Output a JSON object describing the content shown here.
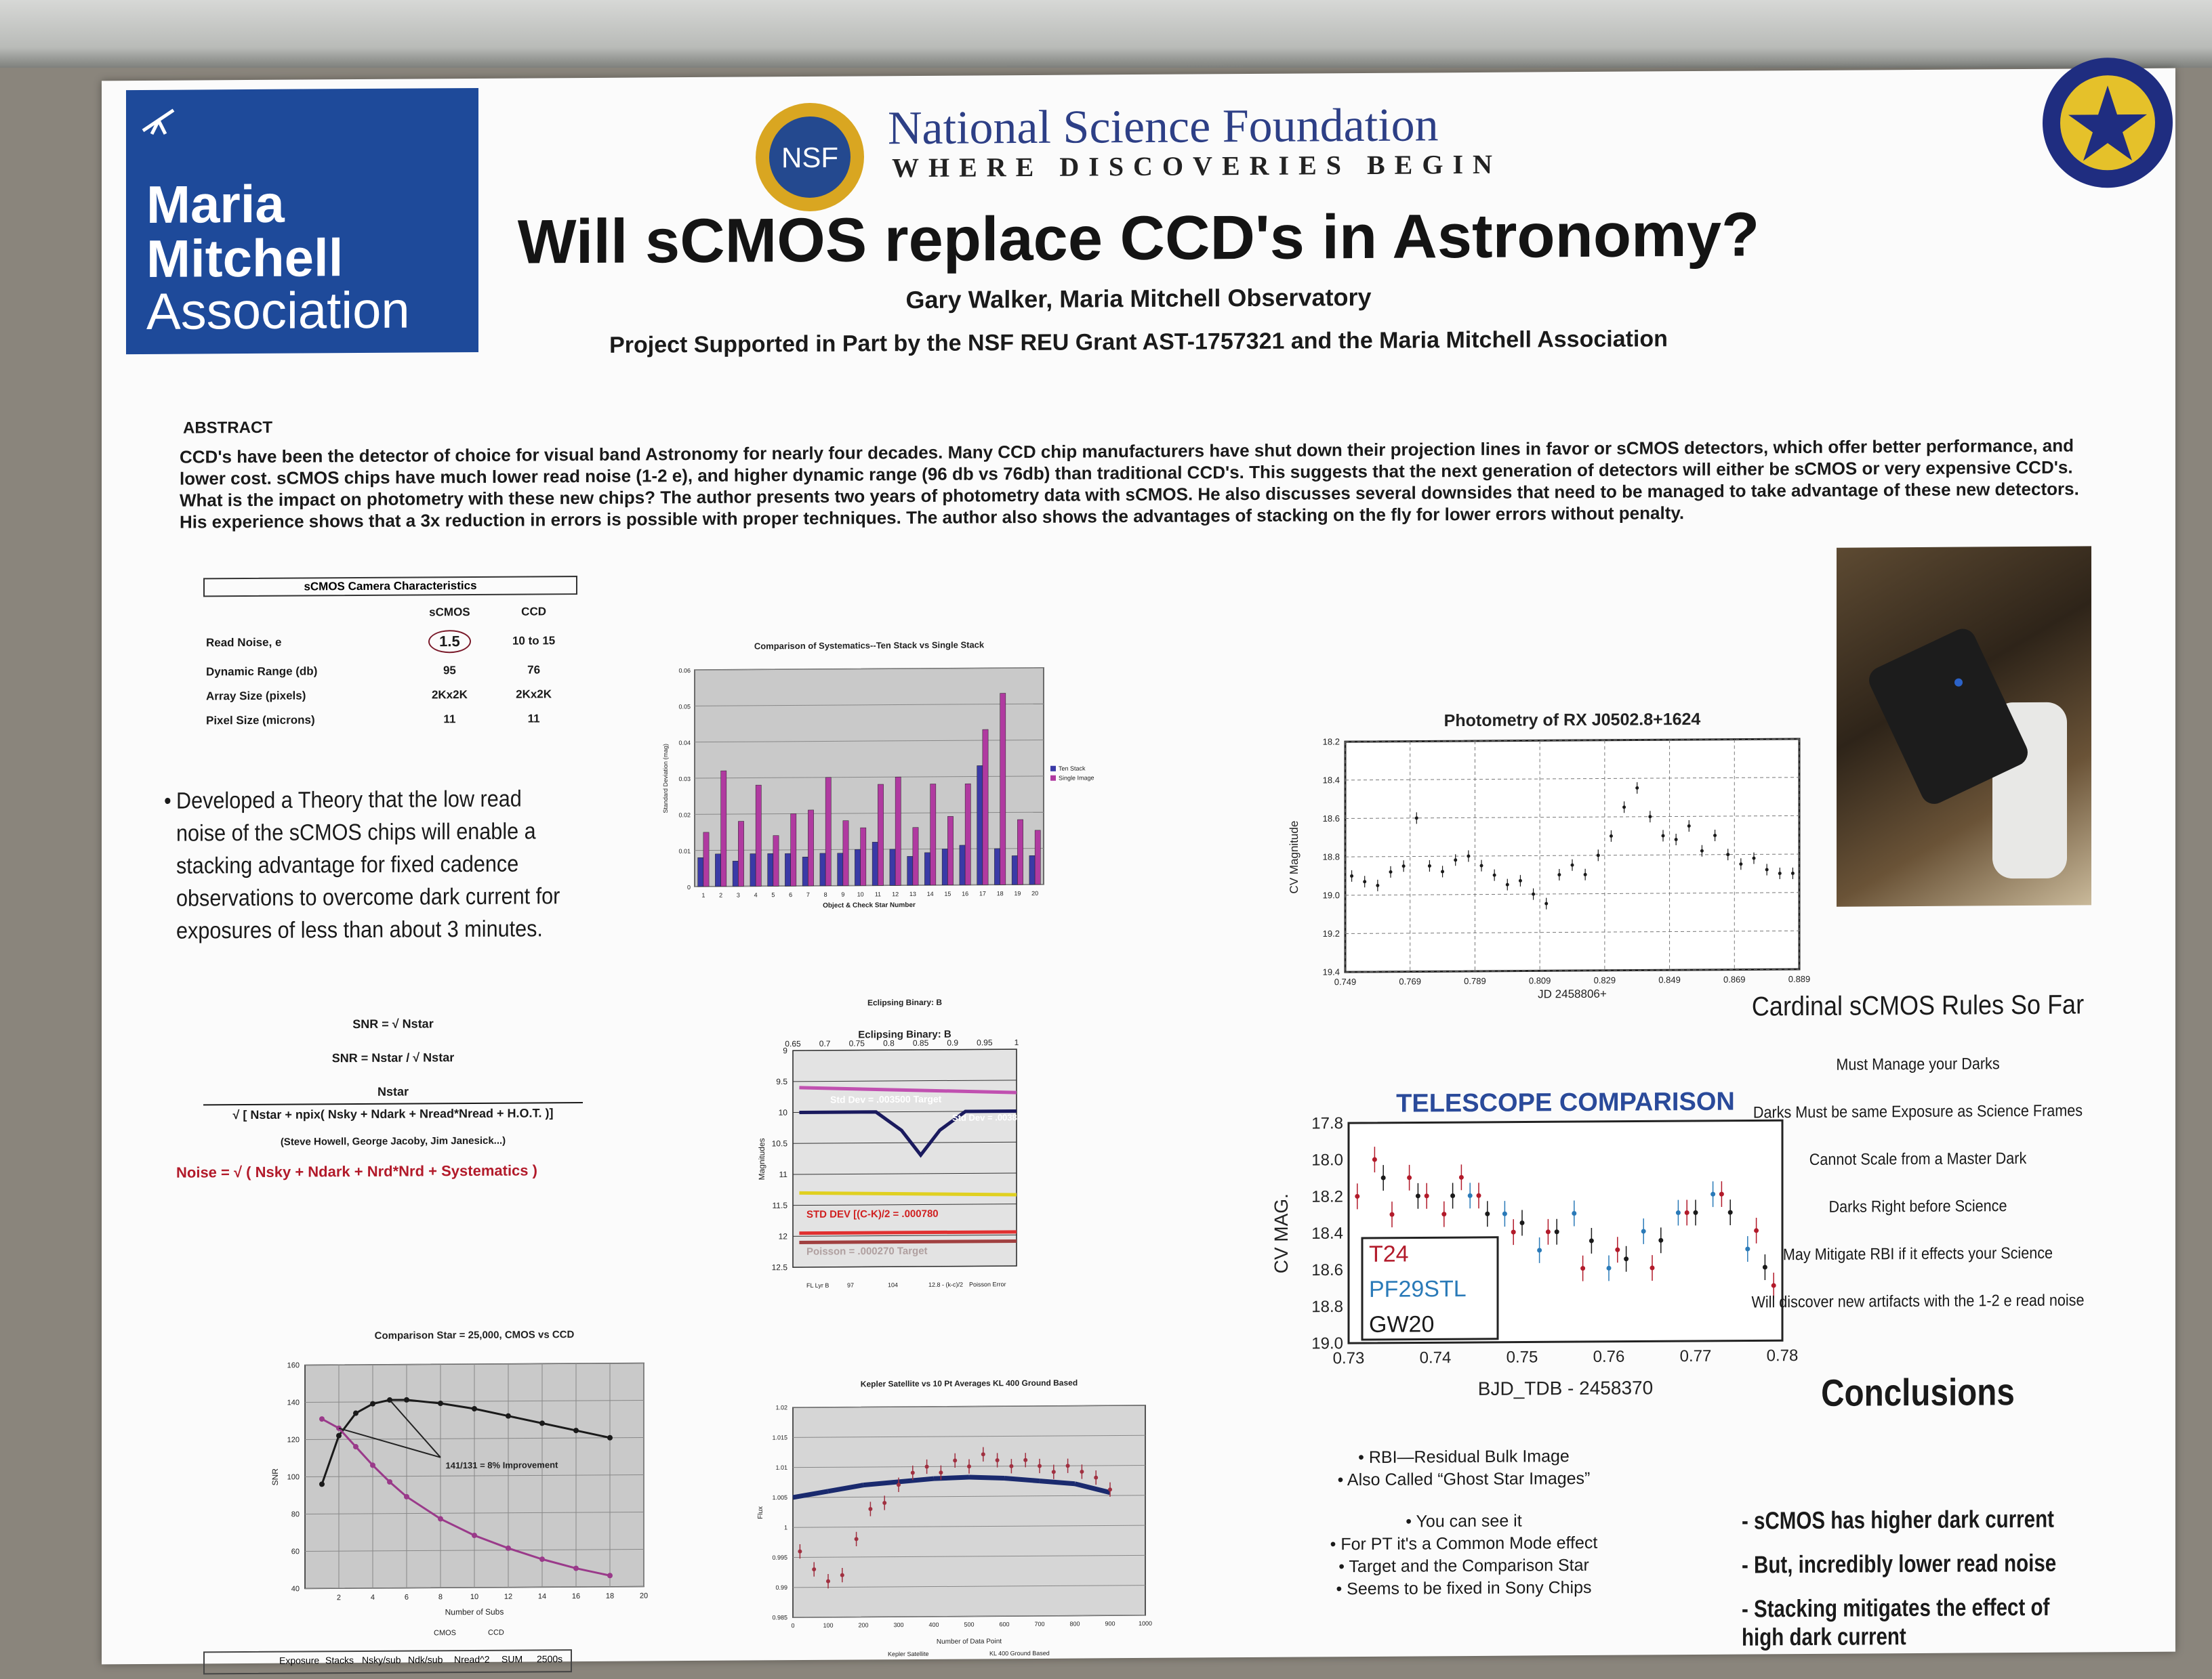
{
  "logo": {
    "org_line1": "Maria",
    "org_line2": "Mitchell",
    "org_line3": "Association"
  },
  "nsf": {
    "seal_text": "NSF",
    "name": "National Science Foundation",
    "tagline": "WHERE DISCOVERIES BEGIN"
  },
  "header": {
    "title": "Will sCMOS replace CCD's in Astronomy?",
    "author": "Gary Walker, Maria Mitchell Observatory",
    "support": "Project Supported in Part by the NSF REU Grant AST-1757321 and the Maria Mitchell Association"
  },
  "abstract": {
    "heading": "ABSTRACT",
    "text": "CCD's have been the detector of choice for visual band Astronomy for nearly four decades. Many CCD chip manufacturers have shut down their projection lines in favor or sCMOS detectors, which offer better performance, and lower cost.  sCMOS chips have much lower read noise  (1-2 e), and higher dynamic range (96 db vs 76db) than traditional CCD's. This suggests that the next generation of detectors will either be sCMOS or very expensive CCD's. What is the impact on photometry with these new chips? The author presents two years of photometry data with sCMOS. He also discusses several downsides that need to be managed to take advantage of these new detectors. His experience shows that a 3x reduction in errors is possible with proper techniques.  The author also shows the advantages of stacking on the fly for lower errors without penalty."
  },
  "camera_table": {
    "caption": "sCMOS Camera Characteristics",
    "headers": [
      "",
      "sCMOS",
      "CCD"
    ],
    "rows": [
      [
        "Read Noise, e",
        "1.5",
        "10 to 15"
      ],
      [
        "Dynamic Range  (db)",
        "95",
        "76"
      ],
      [
        "Array Size (pixels)",
        "2Kx2K",
        "2Kx2K"
      ],
      [
        "Pixel Size  (microns)",
        "11",
        "11"
      ]
    ]
  },
  "theory_bullet": "Developed a Theory that the low read noise of the sCMOS chips will enable a stacking advantage for fixed cadence observations to overcome dark current for exposures of less than about 3 minutes.",
  "formulas": {
    "snr1": "SNR = √ Nstar",
    "snr2": "SNR  =   Nstar / √ Nstar",
    "snr3_num": "Nstar",
    "snr3_den": "√ [ Nstar + npix( Nsky + Ndark + Nread*Nread + H.O.T. )]",
    "credit": "(Steve Howell, George Jacoby, Jim Janesick...)",
    "noise": "Noise =  √ ( Nsky + Ndark + Nrd*Nrd + Systematics )"
  },
  "cardinal": {
    "heading": "Cardinal sCMOS Rules So Far",
    "rules": [
      "Must Manage your Darks",
      "Darks Must be same Exposure as Science Frames",
      "Cannot Scale from a Master Dark",
      "Darks Right before Science",
      "May Mitigate RBI if it effects your Science",
      "Will discover new artifacts with the 1-2 e read noise"
    ]
  },
  "rbi_notes": [
    "• RBI—Residual Bulk Image",
    "• Also Called “Ghost Star Images”",
    "• You can see it",
    "• For PT it's a Common Mode effect",
    "• Target and the Comparison Star",
    "• Seems to be fixed in Sony Chips"
  ],
  "conclusions": {
    "heading": "Conclusions",
    "items": [
      "- sCMOS has higher dark current",
      "- But, incredibly lower read noise",
      "- Stacking mitigates the effect of high dark current"
    ]
  },
  "bottom_table_headers": [
    "Exposure",
    "Stacks",
    "Nsky/sub",
    "Ndk/sub",
    "Nread^2",
    "SUM",
    "2500s"
  ],
  "chart_data": [
    {
      "type": "bar",
      "title": "Comparison of Systematics--Ten Stack vs Single Stack",
      "xlabel": "Object & Check Star Number",
      "ylabel": "Standard Deviation (mag)",
      "ylim": [
        0,
        0.06
      ],
      "yticks": [
        "0",
        "0.01",
        "0.02",
        "0.03",
        "0.04",
        "0.05",
        "0.06"
      ],
      "categories": [
        "1",
        "2",
        "3",
        "4",
        "5",
        "6",
        "7",
        "8",
        "9",
        "10",
        "11",
        "12",
        "13",
        "14",
        "15",
        "16",
        "17",
        "18",
        "19",
        "20"
      ],
      "legend_position": "right",
      "series": [
        {
          "name": "Ten Stack",
          "color": "#3a3aa6",
          "values": [
            0.008,
            0.009,
            0.007,
            0.009,
            0.009,
            0.009,
            0.008,
            0.009,
            0.009,
            0.01,
            0.012,
            0.01,
            0.008,
            0.009,
            0.01,
            0.011,
            0.033,
            0.01,
            0.008,
            0.008
          ]
        },
        {
          "name": "Single Image",
          "color": "#b03aa0",
          "values": [
            0.015,
            0.032,
            0.018,
            0.028,
            0.014,
            0.02,
            0.021,
            0.03,
            0.018,
            0.016,
            0.028,
            0.03,
            0.016,
            0.028,
            0.019,
            0.028,
            0.043,
            0.053,
            0.018,
            0.015
          ]
        }
      ]
    },
    {
      "type": "line",
      "title": "Eclipsing Binary:  B",
      "ylabel": "Magnitudes",
      "xlim": [
        0.65,
        1
      ],
      "ylim": [
        12.5,
        9
      ],
      "xticks": [
        "0.65",
        "0.7",
        "0.75",
        "0.8",
        "0.85",
        "0.9",
        "0.95",
        "1"
      ],
      "yticks": [
        "9",
        "9.5",
        "10",
        "10.5",
        "11",
        "11.5",
        "12",
        "12.5"
      ],
      "annotations": [
        "Std Dev = .003500  Target",
        "Std Dev = .0038",
        "STD DEV [(C-K)/2 = .000780",
        "Poisson = .000270 Target"
      ],
      "series": [
        {
          "name": "FL Lyr  B",
          "color": "#c050b0",
          "x": [
            0.66,
            1
          ],
          "y": [
            9.6,
            9.7
          ]
        },
        {
          "name": "97",
          "color": "#1a1a5e",
          "x": [
            0.66,
            0.78,
            0.82,
            0.85,
            0.88,
            0.92,
            1
          ],
          "y": [
            10,
            10,
            10.3,
            10.7,
            10.3,
            10,
            10
          ]
        },
        {
          "name": "104",
          "color": "#e0d020",
          "x": [
            0.66,
            1
          ],
          "y": [
            11.3,
            11.35
          ]
        },
        {
          "name": "12.8 - (k-c)/2",
          "color": "#e03030",
          "x": [
            0.66,
            1
          ],
          "y": [
            11.95,
            11.95
          ]
        },
        {
          "name": "Poisson Error",
          "color": "#a04040",
          "x": [
            0.66,
            1
          ],
          "y": [
            12.1,
            12.1
          ]
        }
      ]
    },
    {
      "type": "line",
      "title": "Comparison Star = 25,000,  CMOS vs CCD",
      "xlabel": "Number of Subs",
      "ylabel": "SNR",
      "xlim": [
        0,
        20
      ],
      "ylim": [
        40,
        160
      ],
      "xticks": [
        "2",
        "4",
        "6",
        "8",
        "10",
        "12",
        "14",
        "16",
        "18",
        "20"
      ],
      "yticks": [
        "40",
        "60",
        "80",
        "100",
        "120",
        "140",
        "160"
      ],
      "annotations": [
        "141/131 = 8% Improvement"
      ],
      "series": [
        {
          "name": "CMOS",
          "color": "#1a1a1a",
          "x": [
            1,
            2,
            3,
            4,
            5,
            6,
            8,
            10,
            12,
            14,
            16,
            18
          ],
          "y": [
            96,
            122,
            134,
            139,
            141,
            141,
            139,
            136,
            132,
            128,
            124,
            120
          ]
        },
        {
          "name": "CCD",
          "color": "#9a3a8a",
          "x": [
            1,
            2,
            3,
            4,
            5,
            6,
            8,
            10,
            12,
            14,
            16,
            18
          ],
          "y": [
            131,
            126,
            116,
            106,
            97,
            89,
            77,
            68,
            61,
            55,
            50,
            46
          ]
        }
      ]
    },
    {
      "type": "scatter",
      "title": "Kepler Satellite vs 10 Pt Averages KL 400 Ground Based",
      "xlabel": "Number of Data Point",
      "ylabel": "Flux",
      "xlim": [
        0,
        1000
      ],
      "ylim": [
        0.985,
        1.02
      ],
      "xticks": [
        "0",
        "100",
        "200",
        "300",
        "400",
        "500",
        "600",
        "700",
        "800",
        "900",
        "1000"
      ],
      "yticks": [
        "0.985",
        "0.99",
        "0.995",
        "1",
        "1.005",
        "1.01",
        "1.015",
        "1.02"
      ],
      "series": [
        {
          "name": "Kepler Satellite",
          "color": "#a03040",
          "x": [
            20,
            60,
            100,
            140,
            180,
            220,
            260,
            300,
            340,
            380,
            420,
            460,
            500,
            540,
            580,
            620,
            660,
            700,
            740,
            780,
            820,
            860,
            900
          ],
          "y": [
            0.996,
            0.993,
            0.991,
            0.992,
            0.998,
            1.003,
            1.004,
            1.007,
            1.009,
            1.01,
            1.009,
            1.011,
            1.01,
            1.012,
            1.011,
            1.01,
            1.011,
            1.01,
            1.009,
            1.01,
            1.009,
            1.008,
            1.006
          ]
        },
        {
          "name": "KL 400 Ground Based",
          "color": "#1a2a6e",
          "x": [
            0,
            100,
            200,
            300,
            400,
            500,
            600,
            700,
            800,
            900
          ],
          "y": [
            1.005,
            1.006,
            1.007,
            1.0075,
            1.008,
            1.0082,
            1.008,
            1.0075,
            1.007,
            1.0055
          ]
        }
      ]
    },
    {
      "type": "scatter",
      "title": "Photometry of RX J0502.8+1624",
      "xlabel": "JD 2458806+",
      "ylabel": "CV Magnitude",
      "xlim": [
        0.749,
        0.889
      ],
      "ylim": [
        19.4,
        18.2
      ],
      "xticks": [
        "0.749",
        "0.769",
        "0.789",
        "0.809",
        "0.829",
        "0.849",
        "0.869",
        "0.889"
      ],
      "yticks": [
        "18.2",
        "18.4",
        "18.6",
        "18.8",
        "19.0",
        "19.2",
        "19.4"
      ],
      "series": [
        {
          "name": "",
          "color": "#1a1a1a",
          "x": [
            0.751,
            0.755,
            0.759,
            0.763,
            0.767,
            0.771,
            0.775,
            0.779,
            0.783,
            0.787,
            0.791,
            0.795,
            0.799,
            0.803,
            0.807,
            0.811,
            0.815,
            0.819,
            0.823,
            0.827,
            0.831,
            0.835,
            0.839,
            0.843,
            0.847,
            0.851,
            0.855,
            0.859,
            0.863,
            0.867,
            0.871,
            0.875,
            0.879,
            0.883,
            0.887
          ],
          "y": [
            18.9,
            18.93,
            18.95,
            18.88,
            18.85,
            18.6,
            18.85,
            18.88,
            18.82,
            18.8,
            18.85,
            18.9,
            18.95,
            18.93,
            19.0,
            19.05,
            18.9,
            18.85,
            18.9,
            18.8,
            18.7,
            18.55,
            18.45,
            18.6,
            18.7,
            18.72,
            18.65,
            18.78,
            18.7,
            18.8,
            18.85,
            18.82,
            18.88,
            18.9,
            18.9
          ]
        }
      ]
    },
    {
      "type": "scatter",
      "title": "TELESCOPE  COMPARISON",
      "xlabel": "BJD_TDB - 2458370",
      "ylabel": "CV MAG.",
      "xlim": [
        0.73,
        0.78
      ],
      "ylim": [
        19.0,
        17.8
      ],
      "xticks": [
        "0.73",
        "0.74",
        "0.75",
        "0.76",
        "0.77",
        "0.78"
      ],
      "yticks": [
        "17.8",
        "18.0",
        "18.2",
        "18.4",
        "18.6",
        "18.8",
        "19.0"
      ],
      "legend_position": "bottom-left",
      "series": [
        {
          "name": "T24",
          "color": "#b21a2a",
          "x": [
            0.731,
            0.733,
            0.735,
            0.737,
            0.739,
            0.741,
            0.743,
            0.745,
            0.749,
            0.753,
            0.757,
            0.761,
            0.765,
            0.769,
            0.773,
            0.777,
            0.779
          ],
          "y": [
            18.2,
            18.0,
            18.3,
            18.1,
            18.2,
            18.3,
            18.1,
            18.2,
            18.4,
            18.4,
            18.6,
            18.5,
            18.6,
            18.3,
            18.2,
            18.4,
            18.7
          ]
        },
        {
          "name": "PF29STL",
          "color": "#2a7ab8",
          "x": [
            0.744,
            0.748,
            0.752,
            0.756,
            0.76,
            0.764,
            0.768,
            0.772,
            0.776
          ],
          "y": [
            18.2,
            18.3,
            18.5,
            18.3,
            18.6,
            18.4,
            18.3,
            18.2,
            18.5
          ]
        },
        {
          "name": "GW20",
          "color": "#1a1a1a",
          "x": [
            0.734,
            0.738,
            0.742,
            0.746,
            0.75,
            0.754,
            0.758,
            0.762,
            0.766,
            0.77,
            0.774,
            0.778
          ],
          "y": [
            18.1,
            18.2,
            18.2,
            18.3,
            18.35,
            18.4,
            18.45,
            18.55,
            18.45,
            18.3,
            18.3,
            18.6
          ]
        }
      ]
    }
  ]
}
